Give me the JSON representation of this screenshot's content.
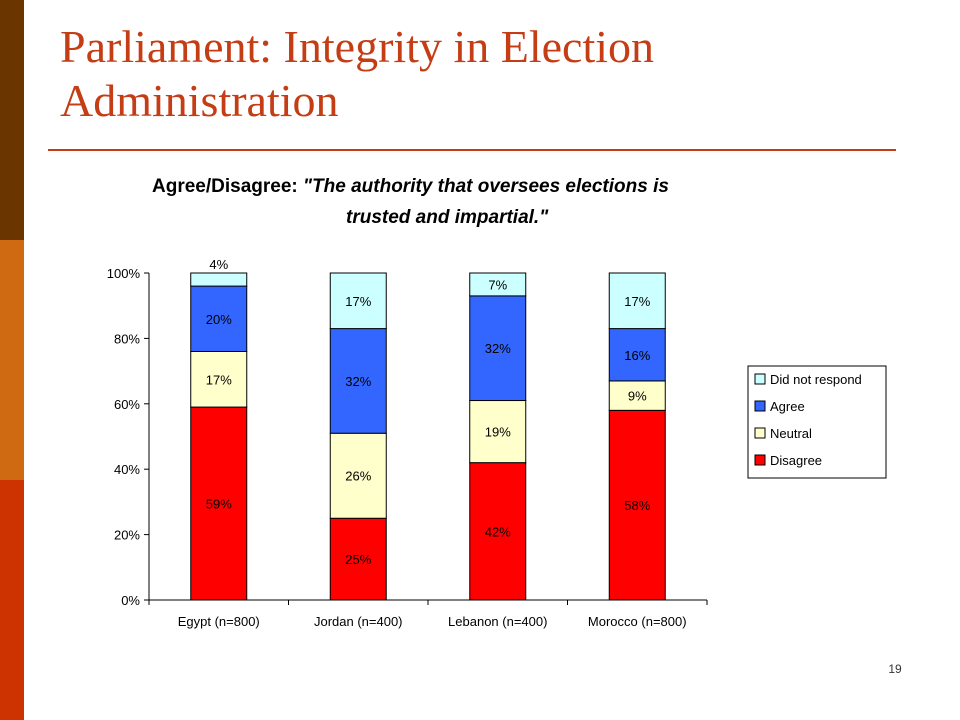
{
  "slide": {
    "title_line1": "Parliament: Integrity in Election",
    "title_line2": "Administration",
    "page_number": "19"
  },
  "colors": {
    "accent": "#c43d14",
    "side_bar": [
      "#6b3500",
      "#d06a12",
      "#cc3300"
    ]
  },
  "chart_data": {
    "type": "bar",
    "stacked": true,
    "title_lines": [
      {
        "prefix": "Agree/Disagree: ",
        "quote": "\"The authority that oversees elections is"
      },
      {
        "prefix": "",
        "quote": "trusted and  impartial.\""
      }
    ],
    "categories": [
      "Egypt (n=800)",
      "Jordan (n=400)",
      "Lebanon (n=400)",
      "Morocco (n=800)"
    ],
    "series": [
      {
        "name": "Disagree",
        "color": "#ff0000",
        "values": [
          59,
          25,
          42,
          58
        ],
        "labels": [
          "59%",
          "25%",
          "42%",
          "58%"
        ]
      },
      {
        "name": "Neutral",
        "color": "#ffffcc",
        "values": [
          17,
          26,
          19,
          9
        ],
        "labels": [
          "17%",
          "26%",
          "19%",
          "9%"
        ]
      },
      {
        "name": "Agree",
        "color": "#3366ff",
        "values": [
          20,
          32,
          32,
          16
        ],
        "labels": [
          "20%",
          "32%",
          "32%",
          "16%"
        ]
      },
      {
        "name": "Did not respond",
        "color": "#ccffff",
        "values": [
          4,
          17,
          7,
          17
        ],
        "labels": [
          "4%",
          "17%",
          "7%",
          "17%"
        ]
      }
    ],
    "y_ticks": [
      "0%",
      "20%",
      "40%",
      "60%",
      "80%",
      "100%"
    ],
    "ylim": [
      0,
      100
    ],
    "grid": false,
    "legend_placement": "right",
    "legend_order": [
      "Did not respond",
      "Agree",
      "Neutral",
      "Disagree"
    ],
    "xlabel": "",
    "ylabel": ""
  }
}
